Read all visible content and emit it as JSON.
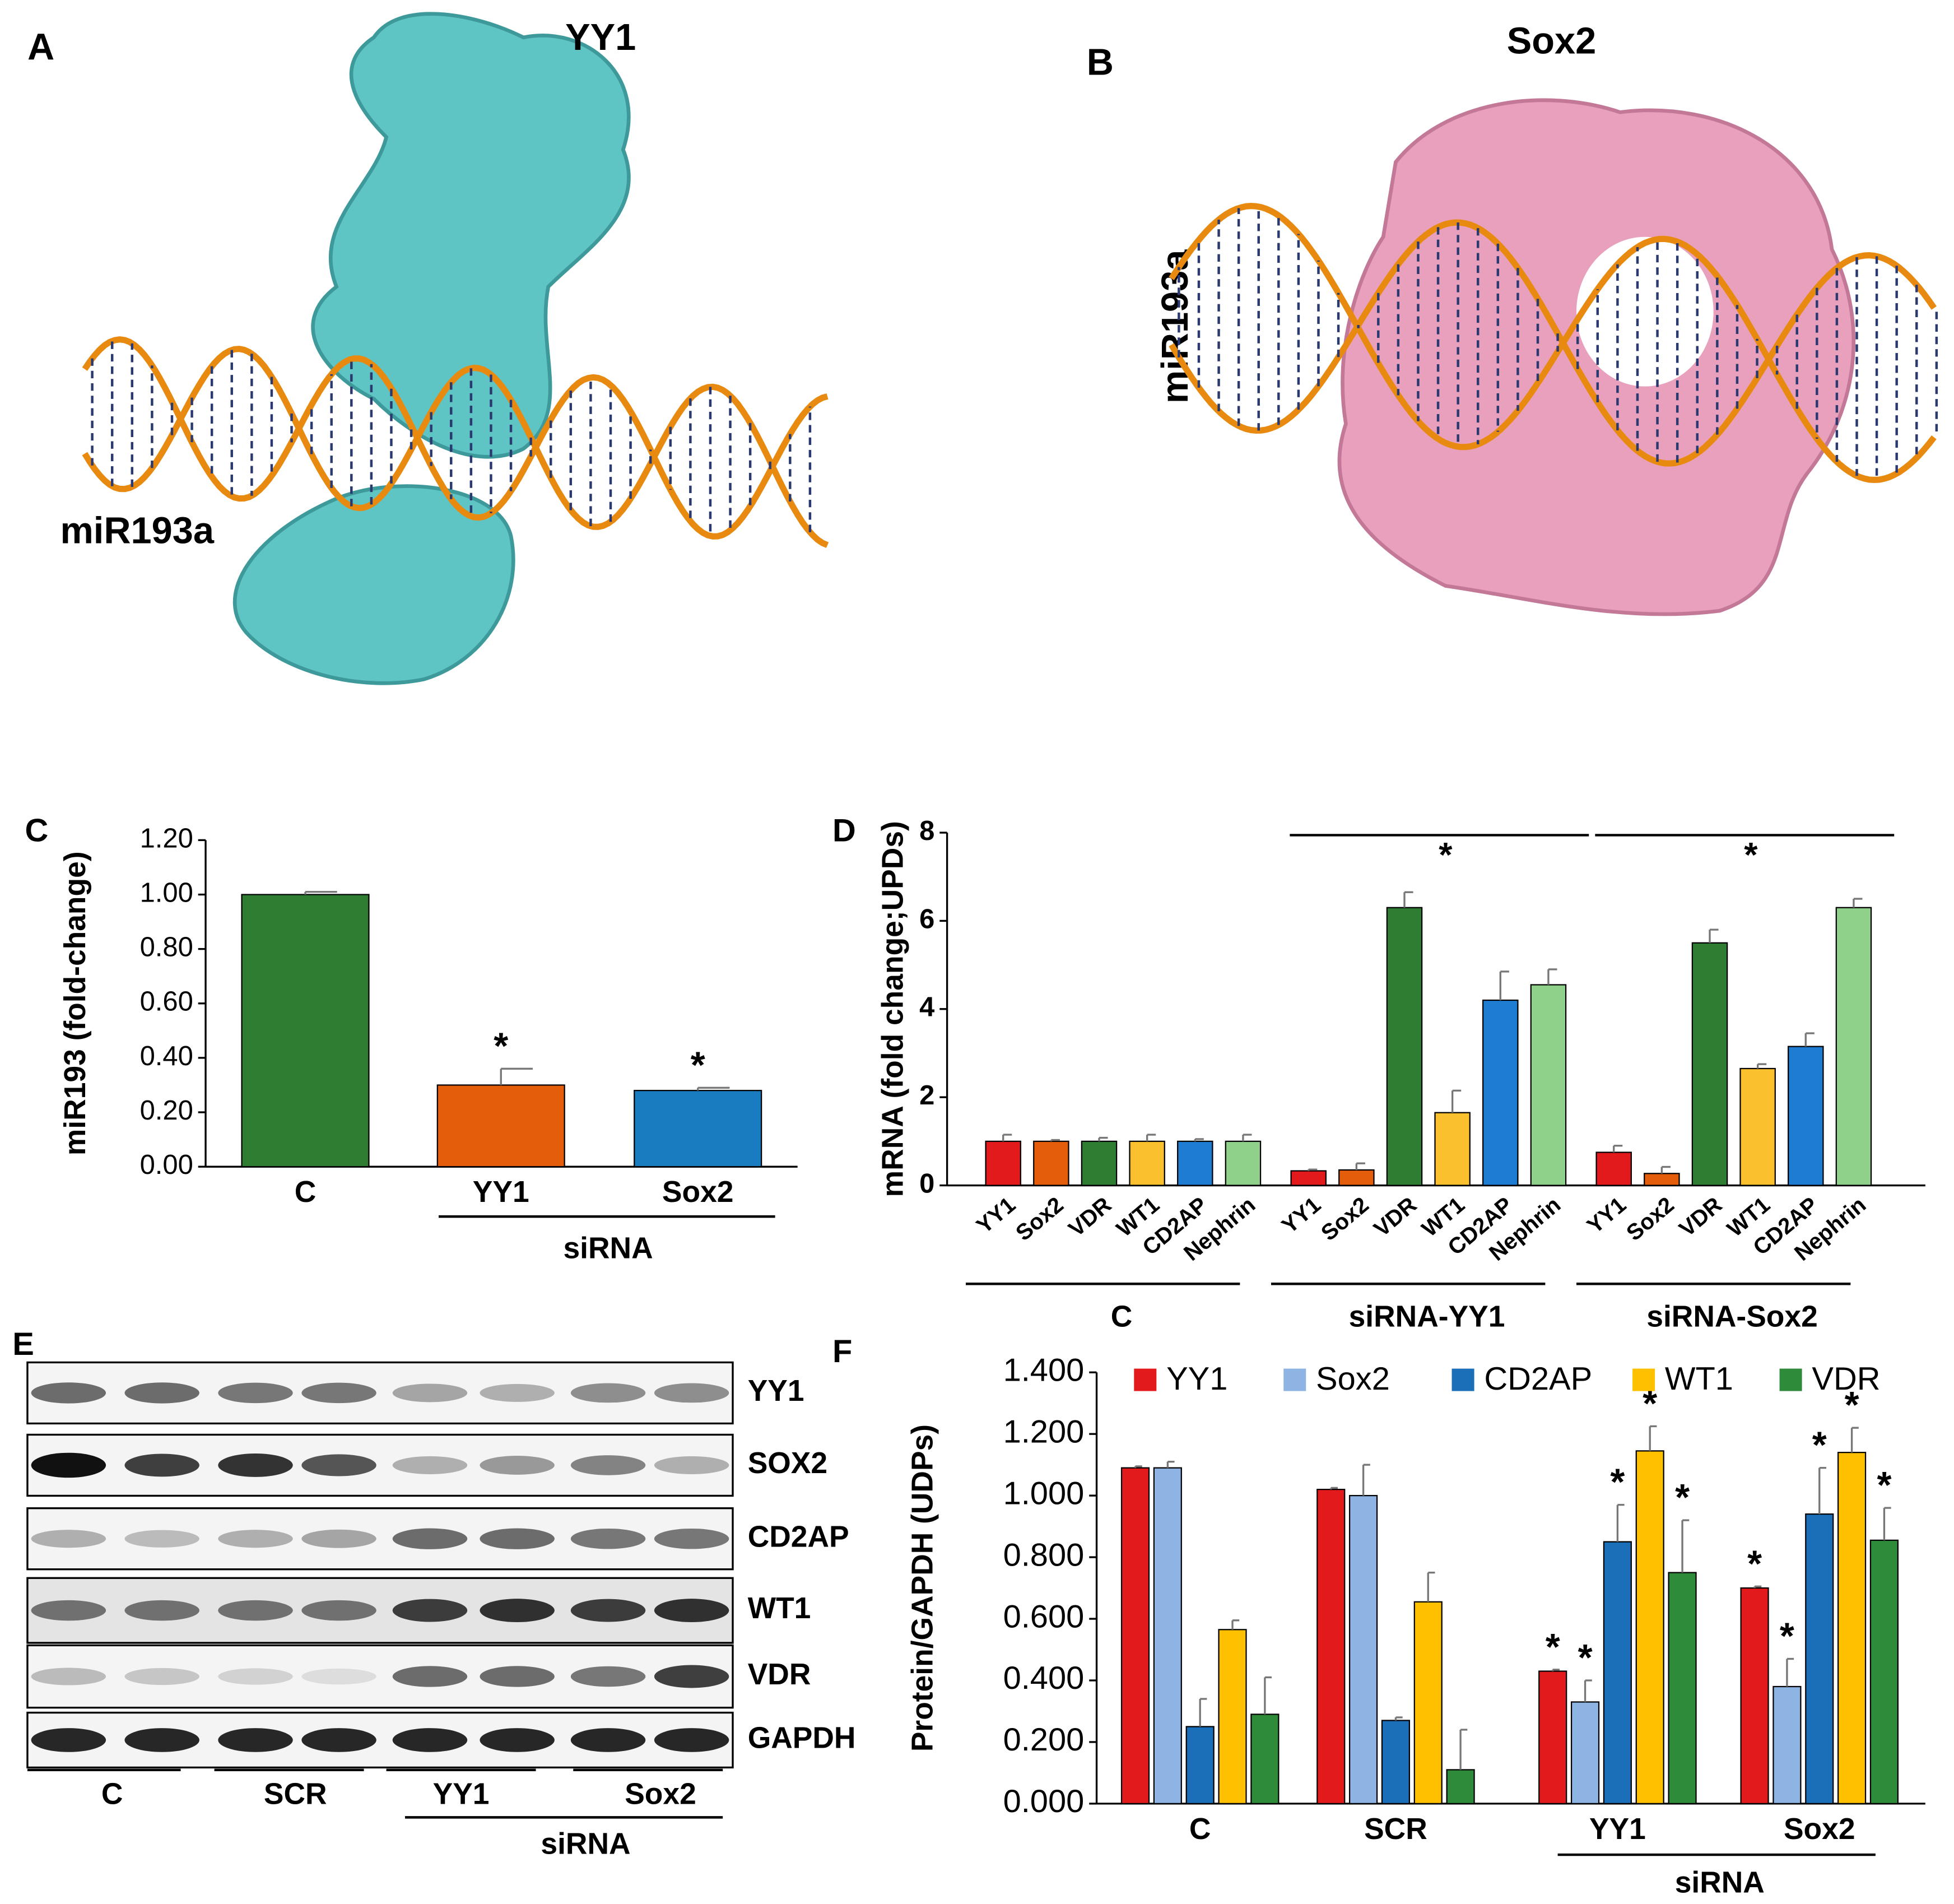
{
  "panels": {
    "A": {
      "letter": "A",
      "title": "YY1",
      "dna_label": "miR193a"
    },
    "B": {
      "letter": "B",
      "title": "Sox2",
      "dna_label": "miR193a"
    },
    "E": {
      "letter": "E",
      "proteins": [
        "YY1",
        "SOX2",
        "CD2AP",
        "WT1",
        "VDR",
        "GAPDH"
      ],
      "lanes": [
        "C",
        "SCR",
        "YY1",
        "Sox2"
      ],
      "group_label": "siRNA"
    }
  },
  "chart_data": [
    {
      "type": "bar",
      "letter": "C",
      "y_label": "miR193 (fold-change)",
      "categories": [
        "C",
        "YY1",
        "Sox2"
      ],
      "values": [
        1.0,
        0.3,
        0.28
      ],
      "errors": [
        0.01,
        0.06,
        0.01
      ],
      "colors": [
        "#2e7d32",
        "#e35d0a",
        "#1a7cc0"
      ],
      "stars": [
        null,
        "*",
        "*"
      ],
      "group_label": "siRNA",
      "ylim": [
        0,
        1.2
      ],
      "yticks": [
        {
          "value": 0,
          "label": "0.00"
        },
        {
          "value": 0.2,
          "label": "0.20"
        },
        {
          "value": 0.4,
          "label": "0.40"
        },
        {
          "value": 0.6,
          "label": "0.60"
        },
        {
          "value": 0.8,
          "label": "0.80"
        },
        {
          "value": 1.0,
          "label": "1.00"
        },
        {
          "value": 1.2,
          "label": "1.20"
        }
      ]
    },
    {
      "type": "grouped-bar",
      "letter": "D",
      "y_label": "mRNA (fold change;UPDs)",
      "groups": [
        "C",
        "siRNA-YY1",
        "siRNA-Sox2"
      ],
      "group_stars": [
        null,
        "*",
        "*"
      ],
      "series": [
        {
          "name": "YY1",
          "color": "#e31a1c",
          "values": [
            1.0,
            0.33,
            0.75
          ],
          "errors": [
            0.15,
            0.03,
            0.15
          ]
        },
        {
          "name": "Sox2",
          "color": "#e35d0a",
          "values": [
            1.0,
            0.35,
            0.27
          ],
          "errors": [
            0.03,
            0.15,
            0.15
          ]
        },
        {
          "name": "VDR",
          "color": "#2e7d32",
          "values": [
            1.0,
            6.3,
            5.5
          ],
          "errors": [
            0.08,
            0.35,
            0.3
          ]
        },
        {
          "name": "WT1",
          "color": "#fbc02d",
          "values": [
            1.0,
            1.65,
            2.65
          ],
          "errors": [
            0.15,
            0.5,
            0.1
          ]
        },
        {
          "name": "CD2AP",
          "color": "#1e7dd0",
          "values": [
            1.0,
            4.2,
            3.15
          ],
          "errors": [
            0.05,
            0.65,
            0.3
          ]
        },
        {
          "name": "Nephrin",
          "color": "#8fd08a",
          "values": [
            1.0,
            4.55,
            6.3
          ],
          "errors": [
            0.15,
            0.35,
            0.2
          ]
        }
      ],
      "ylim": [
        0,
        8
      ],
      "yticks": [
        0,
        2,
        4,
        6,
        8
      ]
    },
    {
      "type": "grouped-bar",
      "letter": "F",
      "y_label": "Protein/GAPDH (UDPs)",
      "categories": [
        "C",
        "SCR",
        "YY1",
        "Sox2"
      ],
      "group_label": "siRNA",
      "series": [
        {
          "name": "YY1",
          "color": "#e31a1c",
          "values": [
            1.09,
            1.02,
            0.43,
            0.7
          ],
          "errors": [
            0.005,
            0.005,
            0.005,
            0.005
          ],
          "stars": [
            null,
            null,
            "*",
            "*"
          ]
        },
        {
          "name": "Sox2",
          "color": "#8db4e2",
          "values": [
            1.09,
            1.0,
            0.33,
            0.38
          ],
          "errors": [
            0.02,
            0.1,
            0.07,
            0.09
          ],
          "stars": [
            null,
            null,
            "*",
            "*"
          ]
        },
        {
          "name": "CD2AP",
          "color": "#1a6fb8",
          "values": [
            0.25,
            0.27,
            0.85,
            0.94
          ],
          "errors": [
            0.09,
            0.01,
            0.12,
            0.15
          ],
          "stars": [
            null,
            null,
            "*",
            "*"
          ]
        },
        {
          "name": "WT1",
          "color": "#ffc000",
          "values": [
            0.565,
            0.655,
            1.145,
            1.14
          ],
          "errors": [
            0.03,
            0.095,
            0.08,
            0.08
          ],
          "stars": [
            null,
            null,
            "*",
            "*"
          ]
        },
        {
          "name": "VDR",
          "color": "#2e8b3a",
          "values": [
            0.29,
            0.11,
            0.75,
            0.855
          ],
          "errors": [
            0.12,
            0.13,
            0.17,
            0.105
          ],
          "stars": [
            null,
            null,
            "*",
            "*"
          ]
        }
      ],
      "ylim": [
        0,
        1.4
      ],
      "yticks": [
        {
          "value": 0,
          "label": "0.000"
        },
        {
          "value": 0.2,
          "label": "0.200"
        },
        {
          "value": 0.4,
          "label": "0.400"
        },
        {
          "value": 0.6,
          "label": "0.600"
        },
        {
          "value": 0.8,
          "label": "0.800"
        },
        {
          "value": 1.0,
          "label": "1.000"
        },
        {
          "value": 1.2,
          "label": "1.200"
        },
        {
          "value": 1.4,
          "label": "1.400"
        }
      ]
    }
  ]
}
